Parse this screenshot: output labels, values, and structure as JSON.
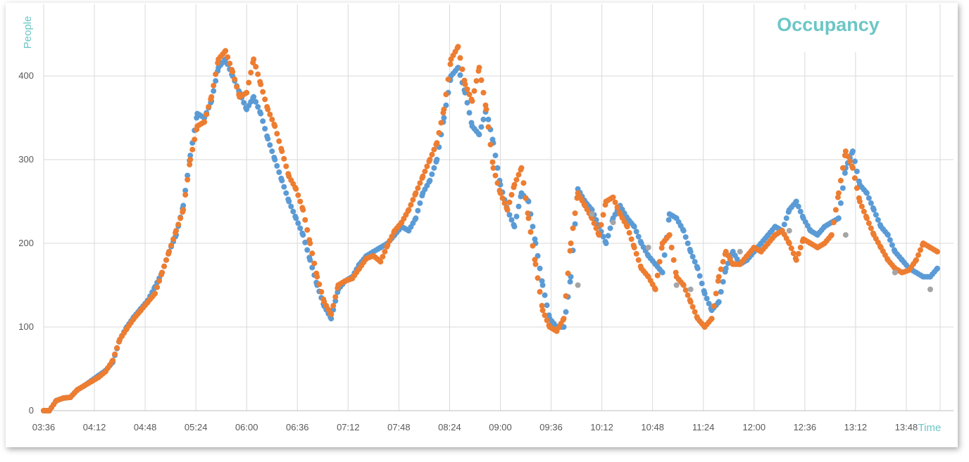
{
  "chart_data": {
    "type": "scatter",
    "title": "Occupancy",
    "ylabel": "People",
    "xlabel": "Time",
    "ylim": [
      0,
      420
    ],
    "yticks": [
      0,
      100,
      200,
      300,
      400
    ],
    "xlim": [
      "03:36",
      "14:12"
    ],
    "xticks": [
      "03:36",
      "04:12",
      "04:48",
      "05:24",
      "06:00",
      "06:36",
      "07:12",
      "07:48",
      "08:24",
      "09:00",
      "09:36",
      "10:12",
      "10:48",
      "11:24",
      "12:00",
      "12:36",
      "13:12",
      "13:48"
    ],
    "grid": true,
    "legend": "none",
    "series": [
      {
        "color": "#5b9bd5",
        "x": [
          "03:36",
          "03:40",
          "03:45",
          "03:50",
          "03:55",
          "04:00",
          "04:05",
          "04:10",
          "04:15",
          "04:20",
          "04:25",
          "04:30",
          "04:35",
          "04:40",
          "04:45",
          "04:50",
          "04:55",
          "05:00",
          "05:05",
          "05:10",
          "05:15",
          "05:20",
          "05:25",
          "05:30",
          "05:35",
          "05:40",
          "05:45",
          "05:50",
          "05:55",
          "06:00",
          "06:05",
          "06:10",
          "06:15",
          "06:20",
          "06:25",
          "06:30",
          "06:35",
          "06:40",
          "06:45",
          "06:50",
          "06:55",
          "07:00",
          "07:05",
          "07:10",
          "07:15",
          "07:20",
          "07:25",
          "07:30",
          "07:35",
          "07:40",
          "07:45",
          "07:50",
          "07:55",
          "08:00",
          "08:05",
          "08:10",
          "08:15",
          "08:20",
          "08:25",
          "08:30",
          "08:35",
          "08:40",
          "08:45",
          "08:50",
          "08:55",
          "09:00",
          "09:05",
          "09:10",
          "09:15",
          "09:20",
          "09:25",
          "09:30",
          "09:35",
          "09:40",
          "09:45",
          "09:50",
          "09:55",
          "10:00",
          "10:05",
          "10:10",
          "10:15",
          "10:20",
          "10:25",
          "10:30",
          "10:35",
          "10:40",
          "10:45",
          "10:50",
          "10:55",
          "11:00",
          "11:05",
          "11:10",
          "11:15",
          "11:20",
          "11:25",
          "11:30",
          "11:35",
          "11:40",
          "11:45",
          "11:50",
          "11:55",
          "12:00",
          "12:05",
          "12:10",
          "12:15",
          "12:20",
          "12:25",
          "12:30",
          "12:35",
          "12:40",
          "12:45",
          "12:50",
          "12:55",
          "13:00",
          "13:05",
          "13:10",
          "13:15",
          "13:20",
          "13:25",
          "13:30",
          "13:35",
          "13:40",
          "13:45",
          "13:50",
          "13:55",
          "14:00",
          "14:05",
          "14:10"
        ],
        "y": [
          0,
          0,
          12,
          15,
          16,
          25,
          30,
          36,
          42,
          48,
          58,
          85,
          100,
          112,
          122,
          132,
          148,
          165,
          190,
          210,
          245,
          305,
          355,
          350,
          370,
          410,
          420,
          400,
          380,
          360,
          375,
          355,
          325,
          300,
          275,
          250,
          230,
          210,
          180,
          150,
          125,
          110,
          145,
          155,
          160,
          175,
          185,
          190,
          195,
          200,
          210,
          220,
          215,
          230,
          260,
          275,
          300,
          350,
          400,
          410,
          380,
          340,
          330,
          360,
          320,
          270,
          240,
          220,
          260,
          250,
          200,
          150,
          110,
          100,
          100,
          160,
          265,
          250,
          240,
          220,
          200,
          230,
          245,
          230,
          220,
          200,
          185,
          175,
          165,
          235,
          230,
          215,
          190,
          170,
          140,
          120,
          130,
          170,
          190,
          175,
          180,
          190,
          200,
          210,
          220,
          215,
          240,
          250,
          230,
          215,
          210,
          220,
          225,
          230,
          290,
          310,
          270,
          260,
          240,
          220,
          210,
          190,
          180,
          170,
          165,
          160,
          160,
          170
        ]
      },
      {
        "color": "#ed7d31",
        "x": [
          "03:36",
          "03:40",
          "03:45",
          "03:50",
          "03:55",
          "04:00",
          "04:05",
          "04:10",
          "04:15",
          "04:20",
          "04:25",
          "04:30",
          "04:35",
          "04:40",
          "04:45",
          "04:50",
          "04:55",
          "05:00",
          "05:05",
          "05:10",
          "05:15",
          "05:20",
          "05:25",
          "05:30",
          "05:35",
          "05:40",
          "05:45",
          "05:50",
          "05:55",
          "06:00",
          "06:05",
          "06:10",
          "06:15",
          "06:20",
          "06:25",
          "06:30",
          "06:35",
          "06:40",
          "06:45",
          "06:50",
          "06:55",
          "07:00",
          "07:05",
          "07:10",
          "07:15",
          "07:20",
          "07:25",
          "07:30",
          "07:35",
          "07:40",
          "07:45",
          "07:50",
          "07:55",
          "08:00",
          "08:05",
          "08:10",
          "08:15",
          "08:20",
          "08:25",
          "08:30",
          "08:35",
          "08:40",
          "08:45",
          "08:50",
          "08:55",
          "09:00",
          "09:05",
          "09:10",
          "09:15",
          "09:20",
          "09:25",
          "09:30",
          "09:35",
          "09:40",
          "09:45",
          "09:50",
          "09:55",
          "10:00",
          "10:05",
          "10:10",
          "10:15",
          "10:20",
          "10:25",
          "10:30",
          "10:35",
          "10:40",
          "10:45",
          "10:50",
          "10:55",
          "11:00",
          "11:05",
          "11:10",
          "11:15",
          "11:20",
          "11:25",
          "11:30",
          "11:35",
          "11:40",
          "11:45",
          "11:50",
          "11:55",
          "12:00",
          "12:05",
          "12:10",
          "12:15",
          "12:20",
          "12:25",
          "12:30",
          "12:35",
          "12:40",
          "12:45",
          "12:50",
          "12:55",
          "13:00",
          "13:05",
          "13:10",
          "13:15",
          "13:20",
          "13:25",
          "13:30",
          "13:35",
          "13:40",
          "13:45",
          "13:50",
          "13:55",
          "14:00",
          "14:05",
          "14:10"
        ],
        "y": [
          0,
          0,
          12,
          15,
          16,
          25,
          30,
          35,
          40,
          47,
          60,
          85,
          98,
          110,
          120,
          130,
          140,
          165,
          190,
          215,
          240,
          300,
          340,
          345,
          375,
          420,
          430,
          405,
          375,
          380,
          420,
          390,
          360,
          340,
          310,
          280,
          265,
          240,
          200,
          160,
          130,
          115,
          150,
          155,
          158,
          170,
          182,
          185,
          178,
          198,
          215,
          225,
          240,
          260,
          280,
          300,
          320,
          360,
          420,
          435,
          390,
          370,
          410,
          360,
          290,
          260,
          240,
          270,
          290,
          230,
          175,
          120,
          100,
          95,
          110,
          200,
          260,
          245,
          230,
          210,
          250,
          255,
          235,
          220,
          195,
          170,
          160,
          145,
          200,
          210,
          160,
          150,
          130,
          110,
          100,
          110,
          160,
          190,
          175,
          175,
          185,
          195,
          190,
          200,
          210,
          215,
          200,
          180,
          205,
          200,
          195,
          200,
          210,
          260,
          310,
          290,
          250,
          230,
          210,
          195,
          180,
          170,
          165,
          168,
          180,
          200,
          195,
          190
        ]
      },
      {
        "color": "#a5a5a5",
        "x": [
          "09:55",
          "10:05",
          "10:20",
          "10:45",
          "11:05",
          "11:15",
          "11:50",
          "12:25",
          "13:05",
          "13:40",
          "14:05"
        ],
        "y": [
          150,
          235,
          225,
          195,
          150,
          145,
          190,
          215,
          210,
          165,
          145
        ]
      }
    ]
  }
}
